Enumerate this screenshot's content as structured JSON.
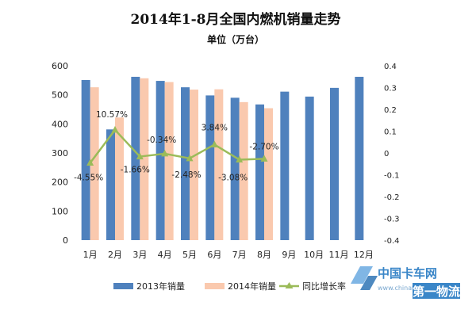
{
  "chart_data": {
    "type": "bar",
    "title": "2014年1-8月全国内燃机销量走势",
    "subtitle": "单位（万台）",
    "categories": [
      "1月",
      "2月",
      "3月",
      "4月",
      "5月",
      "6月",
      "7月",
      "8月",
      "9月",
      "10月",
      "11月",
      "12月"
    ],
    "series": [
      {
        "name": "2013年销量",
        "type": "bar",
        "axis": "left",
        "color": "#4f81bd",
        "values": [
          551,
          381,
          562,
          548,
          526,
          498,
          490,
          467,
          511,
          494,
          524,
          562
        ]
      },
      {
        "name": "2014年销量",
        "type": "bar",
        "axis": "left",
        "color": "#fac9ae",
        "values": [
          526,
          422,
          557,
          544,
          518,
          519,
          475,
          454,
          null,
          null,
          null,
          null
        ]
      },
      {
        "name": "同比增长率",
        "type": "line",
        "axis": "right",
        "color": "#9bbb59",
        "values": [
          -0.0455,
          0.1057,
          -0.0166,
          -0.0034,
          -0.0248,
          0.0384,
          -0.0308,
          -0.027,
          null,
          null,
          null,
          null
        ]
      }
    ],
    "data_labels": [
      "-4.55%",
      "10.57%",
      "-1.66%",
      "-0.34%",
      "-2.48%",
      "3.84%",
      "-3.08%",
      "-2.70%"
    ],
    "ylim_left": [
      0,
      600
    ],
    "yticks_left": [
      "0",
      "100",
      "200",
      "300",
      "400",
      "500",
      "600"
    ],
    "ylim_right": [
      -0.4,
      0.4
    ],
    "yticks_right": [
      "-0.4",
      "-0.3",
      "-0.2",
      "-0.1",
      "0",
      "0.1",
      "0.2",
      "0.3",
      "0.4"
    ],
    "grid": false,
    "legend_position": "bottom"
  },
  "watermark": {
    "site_name": "中国卡车网",
    "url": "www.chinatruck.org",
    "tag": "第一物流"
  }
}
